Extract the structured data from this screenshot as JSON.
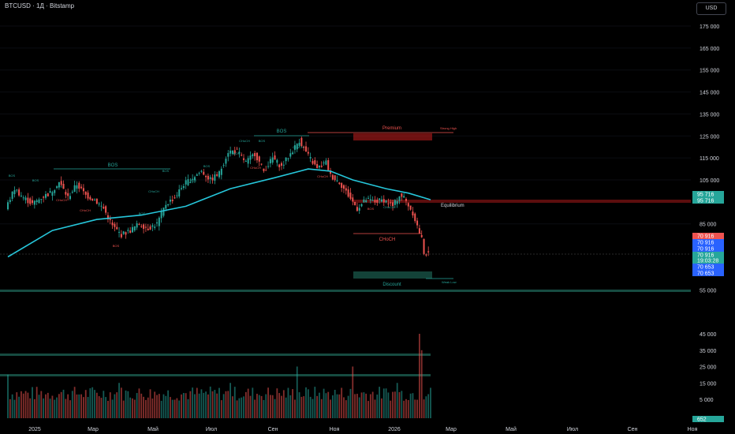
{
  "header": {
    "title": "BTCUSD · 1Д · Bitstamp",
    "currency": "USD"
  },
  "colors": {
    "up": "#26a69a",
    "down": "#ef5350",
    "ema": "#26c6da",
    "premium_zone": "#b71c1c",
    "discount_zone": "#1b5e50"
  },
  "chart_data": {
    "type": "candlestick",
    "price_axis": {
      "ticks": [
        "175 000",
        "165 000",
        "155 000",
        "145 000",
        "135 000",
        "125 000",
        "115 000",
        "105 000",
        "85 000",
        "55 000"
      ],
      "tick_values": [
        175000,
        165000,
        155000,
        145000,
        135000,
        125000,
        115000,
        105000,
        85000,
        55000
      ]
    },
    "volume_axis": {
      "ticks": [
        "45 000",
        "35 000",
        "25 000",
        "15 000",
        "5 000"
      ],
      "tick_values": [
        45000,
        35000,
        25000,
        15000,
        5000
      ]
    },
    "time_axis": {
      "labels": [
        "2025",
        "Мар",
        "Май",
        "Июл",
        "Сен",
        "Ноя",
        "2026",
        "Мар",
        "Май",
        "Июл",
        "Сен",
        "Ноя"
      ]
    },
    "price_path": [
      [
        0,
        92000
      ],
      [
        4,
        101000
      ],
      [
        8,
        97000
      ],
      [
        12,
        94000
      ],
      [
        16,
        97000
      ],
      [
        20,
        99000
      ],
      [
        24,
        104000
      ],
      [
        28,
        97000
      ],
      [
        32,
        103000
      ],
      [
        36,
        98000
      ],
      [
        40,
        96000
      ],
      [
        44,
        92000
      ],
      [
        48,
        84000
      ],
      [
        52,
        80000
      ],
      [
        56,
        82000
      ],
      [
        60,
        85000
      ],
      [
        64,
        83000
      ],
      [
        68,
        85000
      ],
      [
        72,
        94000
      ],
      [
        76,
        97000
      ],
      [
        80,
        103000
      ],
      [
        84,
        106000
      ],
      [
        88,
        109000
      ],
      [
        92,
        105000
      ],
      [
        96,
        108000
      ],
      [
        100,
        118000
      ],
      [
        104,
        118000
      ],
      [
        108,
        113000
      ],
      [
        112,
        117000
      ],
      [
        116,
        109000
      ],
      [
        120,
        115000
      ],
      [
        124,
        111000
      ],
      [
        128,
        117000
      ],
      [
        132,
        123000
      ],
      [
        136,
        116000
      ],
      [
        140,
        110000
      ],
      [
        144,
        113000
      ],
      [
        146,
        107000
      ],
      [
        150,
        104000
      ],
      [
        154,
        98000
      ],
      [
        158,
        92000
      ],
      [
        162,
        96000
      ],
      [
        166,
        95000
      ],
      [
        170,
        96000
      ],
      [
        174,
        93000
      ],
      [
        177,
        98000
      ],
      [
        179,
        97000
      ],
      [
        183,
        90000
      ],
      [
        187,
        78000
      ],
      [
        188,
        72000
      ],
      [
        190,
        70916
      ]
    ],
    "ema_path": [
      [
        0,
        70000
      ],
      [
        20,
        82000
      ],
      [
        40,
        87000
      ],
      [
        60,
        89000
      ],
      [
        80,
        93000
      ],
      [
        100,
        101000
      ],
      [
        120,
        106000
      ],
      [
        135,
        110000
      ],
      [
        145,
        109000
      ],
      [
        155,
        105000
      ],
      [
        170,
        101000
      ],
      [
        180,
        99000
      ],
      [
        190,
        96000
      ]
    ],
    "volume_bars": [
      {
        "i": 0,
        "v": 20000
      },
      {
        "i": 50,
        "v": 15000
      },
      {
        "i": 100,
        "v": 15000
      },
      {
        "i": 130,
        "v": 25000
      },
      {
        "i": 155,
        "v": 25000
      },
      {
        "i": 175,
        "v": 15000
      },
      {
        "i": 185,
        "v": 45000
      },
      {
        "i": 186,
        "v": 35000
      }
    ],
    "annotations": {
      "bos": [
        "BOS",
        "BOS",
        "BOS",
        "BOS",
        "BOS",
        "BOS",
        "BOS",
        "BOS",
        "BOS",
        "BOS",
        "BOS",
        "BOS",
        "BOS"
      ],
      "choch": [
        "CHoCH",
        "CHoCH",
        "CHoCH",
        "CHoCH",
        "CHoCH",
        "CHoCH",
        "CHoCH",
        "CHoCH",
        "CHoCH"
      ],
      "premium": "Premium",
      "equilibrium": "Equilibrium",
      "discount": "Discount",
      "strong_high": "Strong High",
      "weak_low": "Weak Low"
    },
    "price_labels": [
      {
        "text": "95 716",
        "color": "#26a69a"
      },
      {
        "text": "95 716",
        "color": "#26a69a"
      },
      {
        "text": "70 916",
        "color": "#ef5350"
      },
      {
        "text": "70 916",
        "color": "#2962ff"
      },
      {
        "text": "70 916",
        "color": "#2962ff"
      },
      {
        "text": "70 916",
        "color": "#26a69a"
      },
      {
        "text": "19:03:28",
        "color": "#26a69a"
      },
      {
        "text": "70 653",
        "color": "#2962ff"
      },
      {
        "text": "70 653",
        "color": "#2962ff"
      },
      {
        "text": "652",
        "color": "#26a69a"
      }
    ]
  }
}
